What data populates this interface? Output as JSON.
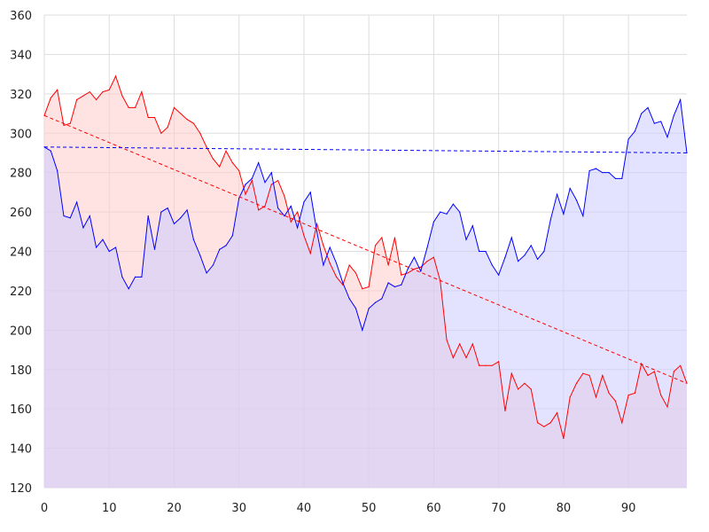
{
  "chart_data": {
    "type": "area",
    "title": "",
    "xlabel": "",
    "ylabel": "",
    "xlim": [
      0,
      99
    ],
    "ylim": [
      120,
      360
    ],
    "grid": true,
    "legend": "none",
    "xticks": [
      0,
      10,
      20,
      30,
      40,
      50,
      60,
      70,
      80,
      90
    ],
    "yticks": [
      120,
      140,
      160,
      180,
      200,
      220,
      240,
      260,
      280,
      300,
      320,
      340,
      360
    ],
    "series": [
      {
        "color": "#ff0000",
        "fill": "#ffcccc",
        "values": [
          309,
          318,
          322,
          304,
          305,
          317,
          319,
          321,
          317,
          321,
          322,
          329,
          319,
          313,
          313,
          321,
          308,
          308,
          300,
          303,
          313,
          310,
          307,
          305,
          300,
          293,
          287,
          283,
          291,
          285,
          281,
          269,
          276,
          261,
          263,
          274,
          276,
          268,
          255,
          260,
          248,
          239,
          254,
          243,
          234,
          227,
          223,
          233,
          229,
          221,
          222,
          243,
          247,
          233,
          247,
          228,
          229,
          231,
          232,
          235,
          237,
          225,
          195,
          186,
          193,
          186,
          193,
          182,
          182,
          182,
          184,
          159,
          178,
          170,
          173,
          170,
          153,
          151,
          153,
          158,
          145,
          166,
          173,
          178,
          177,
          166,
          177,
          168,
          164,
          153,
          167,
          168,
          183,
          177,
          179,
          167,
          161,
          179,
          182,
          173
        ],
        "trend": [
          309,
          173
        ]
      },
      {
        "color": "#0000ff",
        "fill": "#ccccff",
        "values": [
          293,
          291,
          281,
          258,
          257,
          265,
          252,
          258,
          242,
          246,
          240,
          242,
          227,
          221,
          227,
          227,
          258,
          241,
          260,
          262,
          254,
          257,
          261,
          246,
          238,
          229,
          233,
          241,
          243,
          248,
          267,
          274,
          277,
          285,
          275,
          280,
          262,
          258,
          263,
          252,
          265,
          270,
          250,
          233,
          242,
          234,
          224,
          216,
          211,
          200,
          211,
          214,
          216,
          224,
          222,
          223,
          231,
          237,
          230,
          242,
          255,
          260,
          259,
          264,
          260,
          246,
          253,
          240,
          240,
          233,
          228,
          237,
          247,
          235,
          238,
          243,
          236,
          240,
          256,
          269,
          259,
          272,
          266,
          258,
          281,
          282,
          280,
          280,
          277,
          277,
          297,
          301,
          310,
          313,
          305,
          306,
          298,
          309,
          317,
          290
        ],
        "trend": [
          293,
          290
        ]
      }
    ]
  }
}
